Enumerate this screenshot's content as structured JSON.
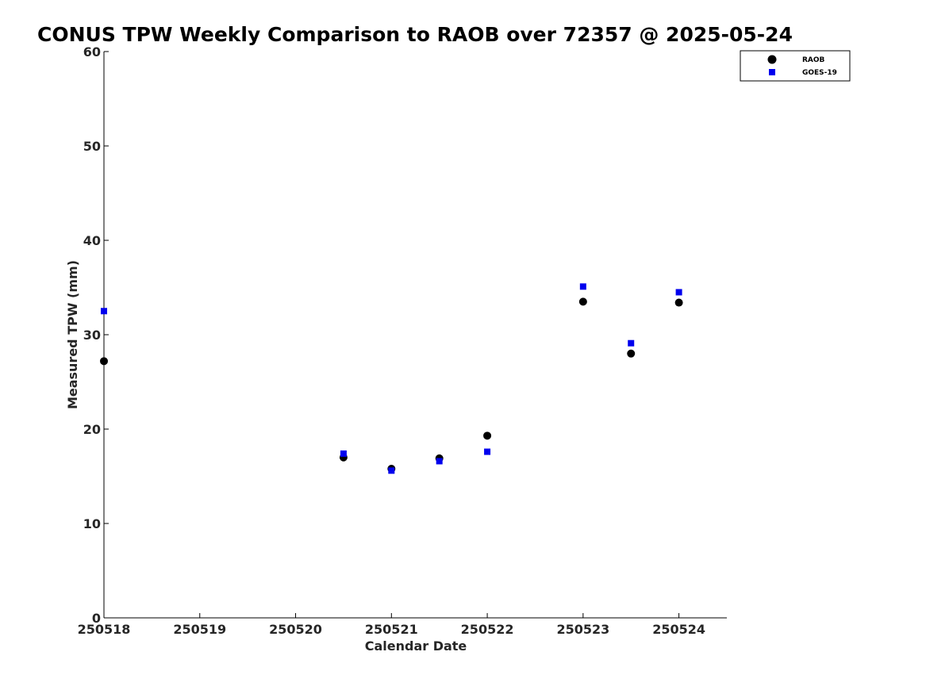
{
  "chart_data": {
    "type": "scatter",
    "title": "CONUS TPW Weekly Comparison to RAOB over 72357 @ 2025-05-24",
    "xlabel": "Calendar Date",
    "ylabel": "Measured TPW (mm)",
    "xlim": [
      250518,
      250524.5
    ],
    "ylim": [
      0,
      60
    ],
    "x_ticks": [
      250518,
      250519,
      250520,
      250521,
      250522,
      250523,
      250524
    ],
    "x_tick_labels": [
      "250518",
      "250519",
      "250520",
      "250521",
      "250522",
      "250523",
      "250524"
    ],
    "y_ticks": [
      0,
      10,
      20,
      30,
      40,
      50,
      60
    ],
    "y_tick_labels": [
      "0",
      "10",
      "20",
      "30",
      "40",
      "50",
      "60"
    ],
    "grid": false,
    "legend_position": "top-right",
    "series": [
      {
        "name": "RAOB",
        "marker": "circle",
        "color": "#000000",
        "points": [
          [
            250518.0,
            27.2
          ],
          [
            250520.5,
            17.0
          ],
          [
            250521.0,
            15.8
          ],
          [
            250521.5,
            16.9
          ],
          [
            250522.0,
            19.3
          ],
          [
            250523.0,
            33.5
          ],
          [
            250523.5,
            28.0
          ],
          [
            250524.0,
            33.4
          ]
        ]
      },
      {
        "name": "GOES-19",
        "marker": "square",
        "color": "#0000ee",
        "points": [
          [
            250518.0,
            32.5
          ],
          [
            250520.5,
            17.4
          ],
          [
            250521.0,
            15.6
          ],
          [
            250521.5,
            16.6
          ],
          [
            250522.0,
            17.6
          ],
          [
            250523.0,
            35.1
          ],
          [
            250523.5,
            29.1
          ],
          [
            250524.0,
            34.5
          ]
        ]
      }
    ]
  }
}
